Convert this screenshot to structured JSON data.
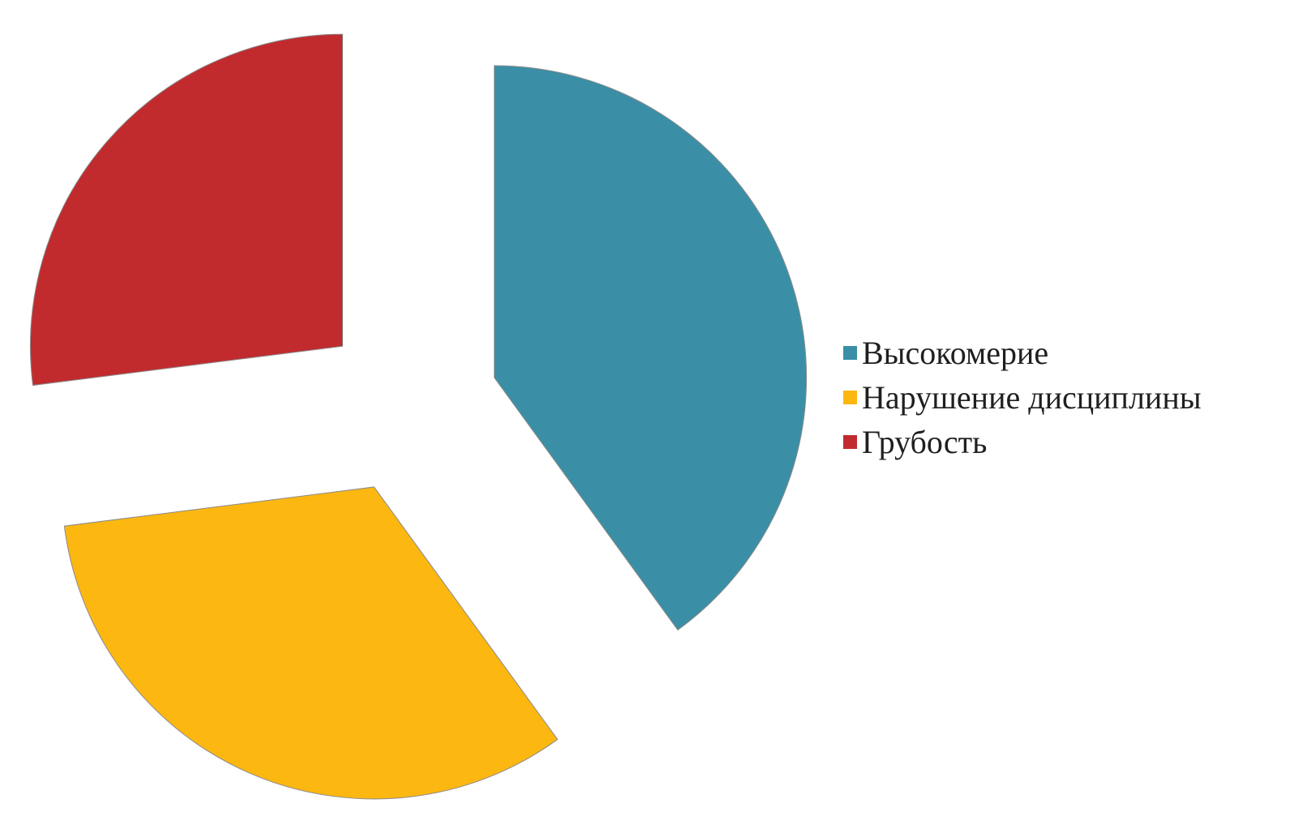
{
  "chart_data": {
    "type": "pie",
    "exploded": true,
    "legend_position": "right",
    "categories": [
      "Высокомерие",
      "Нарушение дисциплины",
      "Грубость"
    ],
    "values": [
      40,
      33,
      27
    ],
    "colors": [
      "#3a8fa6",
      "#fcb711",
      "#c12b2e"
    ]
  }
}
